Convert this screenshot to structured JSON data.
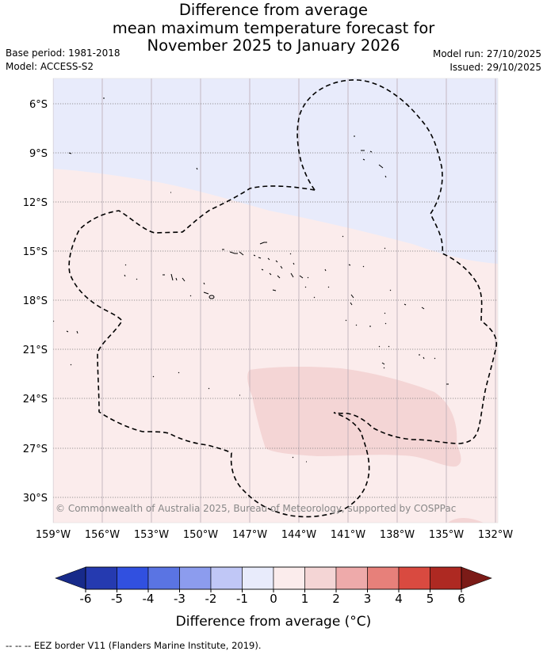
{
  "title": {
    "line1": "Difference from average",
    "line2": "mean maximum temperature forecast for",
    "line3": "November 2025 to January 2026"
  },
  "meta_left": {
    "base_period": "Base period: 1981-2018",
    "model": "Model: ACCESS-S2"
  },
  "meta_right": {
    "model_run": "Model run: 27/10/2025",
    "issued": "Issued: 29/10/2025"
  },
  "map": {
    "lon_labels": [
      "159°W",
      "156°W",
      "153°W",
      "150°W",
      "147°W",
      "144°W",
      "141°W",
      "138°W",
      "135°W",
      "132°W"
    ],
    "lat_labels": [
      "6°S",
      "9°S",
      "12°S",
      "15°S",
      "18°S",
      "21°S",
      "24°S",
      "27°S",
      "30°S"
    ],
    "copyright": "© Commonwealth of Australia 2025, Bureau of Meteorology, supported by COSPPac",
    "colors": {
      "cool_band": "#e8ebfb",
      "warm_band": "#fbecec",
      "warmer_band": "#f4d5d5"
    }
  },
  "colorbar": {
    "ticks": [
      "-6",
      "-5",
      "-4",
      "-3",
      "-2",
      "-1",
      "0",
      "1",
      "2",
      "3",
      "4",
      "5",
      "6"
    ],
    "colors": [
      "#253ab0",
      "#3150e0",
      "#5a74e3",
      "#8c9cee",
      "#c0c7f6",
      "#e8ebfb",
      "#fbecec",
      "#f4d5d5",
      "#eeaaaa",
      "#e7807a",
      "#d94a40",
      "#ae2922"
    ],
    "low_extend_color": "#172a8a",
    "high_extend_color": "#7b1b17",
    "label": "Difference from average (°C)"
  },
  "footer": "-- -- -- EEZ border V11 (Flanders Marine Institute, 2019)."
}
